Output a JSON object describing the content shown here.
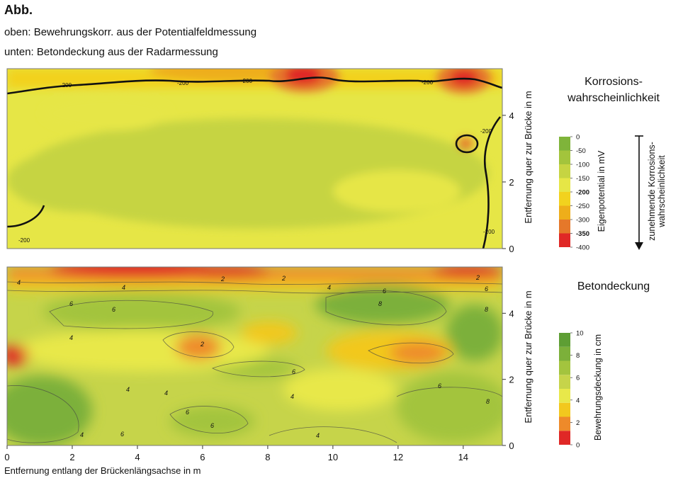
{
  "header": {
    "title": "Abb.",
    "line_top": "oben: Bewehrungskorr. aus der Potentialfeldmessung",
    "line_bottom": "unten: Betondeckung aus der Radarmessung"
  },
  "chart_data": [
    {
      "type": "heatmap",
      "panel": "top",
      "title": "",
      "legend_title_line1": "Korrosions-",
      "legend_title_line2": "wahrscheinlichkeit",
      "xlabel": "",
      "ylabel": "Entfernung quer zur Brücke in m",
      "xlim": [
        0,
        15.2
      ],
      "ylim": [
        0,
        5.4
      ],
      "yticks": [
        "0",
        "2",
        "4"
      ],
      "contour_label": "-200",
      "colorbar": {
        "label": "Eigenpotential in mV",
        "ticks": [
          "0",
          "-50",
          "-100",
          "-150",
          "-200",
          "-250",
          "-300",
          "-350",
          "-400"
        ],
        "bold_ticks": [
          "-200",
          "-350"
        ],
        "colors": [
          "#7fb43a",
          "#a3c43c",
          "#c6d442",
          "#e6e646",
          "#f2d21e",
          "#eeae1a",
          "#e5782a",
          "#e02826"
        ]
      },
      "arrow_label_line1": "zunehmende Korrosions-",
      "arrow_label_line2": "wahrscheinlichkeit",
      "description_values": {
        "background_mv": "-100 to -200",
        "hotspots_mv": [
          "-350 near x=9, y=5",
          "-350 near x=13.8, y=5",
          "-250 near x=14, y=3.2"
        ]
      }
    },
    {
      "type": "heatmap",
      "panel": "bottom",
      "title": "Betondeckung",
      "xlabel": "Entfernung entlang der Brückenlängsachse in m",
      "ylabel": "Entfernung quer zur Brücke in m",
      "xlim": [
        0,
        15.2
      ],
      "ylim": [
        0,
        5.4
      ],
      "xticks": [
        "0",
        "2",
        "4",
        "6",
        "8",
        "10",
        "12",
        "14"
      ],
      "yticks": [
        "0",
        "2",
        "4"
      ],
      "contour_labels": [
        "2",
        "4",
        "6",
        "8"
      ],
      "colorbar": {
        "label": "Bewehrungsdeckung in cm",
        "ticks": [
          "0",
          "2",
          "4",
          "6",
          "8",
          "10"
        ],
        "colors": [
          "#e02826",
          "#ee8a2a",
          "#f2c81e",
          "#e8e84a",
          "#c6d44a",
          "#a3c43e",
          "#7cb03a",
          "#5e9e34"
        ]
      }
    }
  ]
}
